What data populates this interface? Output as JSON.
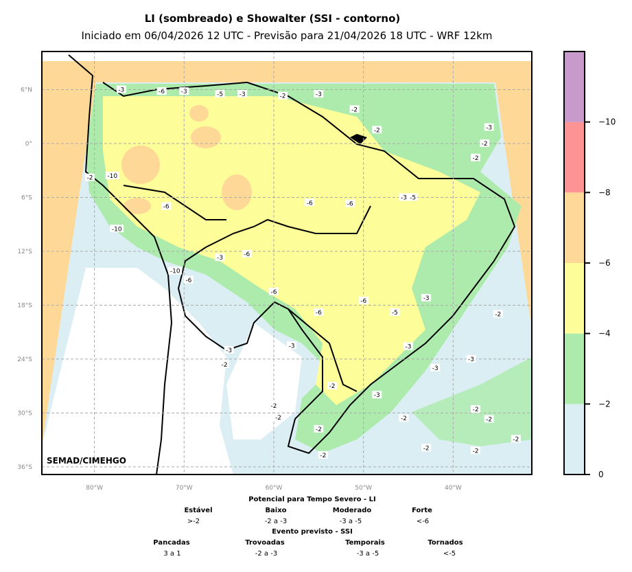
{
  "title": "LI (sombreado) e Showalter (SSI - contorno)",
  "subtitle": "Iniciado em 06/04/2026 12 UTC - Previsão para 21/04/2026 18 UTC - WRF 12km",
  "credit": "SEMAD/CIMEHGO",
  "lat_ticks": [
    {
      "lat": 6,
      "label": "6°N"
    },
    {
      "lat": 0,
      "label": "0°"
    },
    {
      "lat": -6,
      "label": "6°S"
    },
    {
      "lat": -12,
      "label": "12°S"
    },
    {
      "lat": -18,
      "label": "18°S"
    },
    {
      "lat": -24,
      "label": "24°S"
    },
    {
      "lat": -30,
      "label": "30°S"
    },
    {
      "lat": -36,
      "label": "36°S"
    }
  ],
  "lon_ticks": [
    {
      "lon": -80,
      "label": "80°W"
    },
    {
      "lon": -70,
      "label": "70°W"
    },
    {
      "lon": -60,
      "label": "60°W"
    },
    {
      "lon": -50,
      "label": "50°W"
    },
    {
      "lon": -40,
      "label": "40°W"
    }
  ],
  "colorbar": {
    "ticks": [
      "0",
      "−2",
      "−4",
      "−6",
      "−8",
      "−10"
    ],
    "colors": [
      "#dbeef4",
      "#acebab",
      "#fdfd9a",
      "#fdd896",
      "#fd9393",
      "#c899cb"
    ]
  },
  "contour_labels": [
    {
      "lon": -77,
      "lat": 6,
      "t": "-3"
    },
    {
      "lon": -72.5,
      "lat": 5.8,
      "t": "-6"
    },
    {
      "lon": -70,
      "lat": 5.8,
      "t": "-3"
    },
    {
      "lon": -66,
      "lat": 5.5,
      "t": "-5"
    },
    {
      "lon": -63.5,
      "lat": 5.5,
      "t": "-3"
    },
    {
      "lon": -59,
      "lat": 5.3,
      "t": "-2"
    },
    {
      "lon": -55,
      "lat": 5.5,
      "t": "-3"
    },
    {
      "lon": -51,
      "lat": 3.8,
      "t": "-2"
    },
    {
      "lon": -48.5,
      "lat": 1.5,
      "t": "-2"
    },
    {
      "lon": -36,
      "lat": 1.8,
      "t": "-3"
    },
    {
      "lon": -36.5,
      "lat": 0,
      "t": "-2"
    },
    {
      "lon": -37.5,
      "lat": -1.6,
      "t": "-2"
    },
    {
      "lon": -78,
      "lat": -3.6,
      "t": "-10"
    },
    {
      "lon": -80.5,
      "lat": -3.8,
      "t": "-2"
    },
    {
      "lon": -77.5,
      "lat": -9.5,
      "t": "-10"
    },
    {
      "lon": -72,
      "lat": -7,
      "t": "-6"
    },
    {
      "lon": -63,
      "lat": -12.3,
      "t": "-6"
    },
    {
      "lon": -56,
      "lat": -6.6,
      "t": "-6"
    },
    {
      "lon": -51.5,
      "lat": -6.7,
      "t": "-6"
    },
    {
      "lon": -45.5,
      "lat": -6,
      "t": "-3"
    },
    {
      "lon": -44.5,
      "lat": -6,
      "t": "-5"
    },
    {
      "lon": -71,
      "lat": -14.2,
      "t": "-10"
    },
    {
      "lon": -69.5,
      "lat": -15.2,
      "t": "-6"
    },
    {
      "lon": -66,
      "lat": -12.7,
      "t": "-3"
    },
    {
      "lon": -60,
      "lat": -16.5,
      "t": "-6"
    },
    {
      "lon": -55,
      "lat": -18.8,
      "t": "-6"
    },
    {
      "lon": -50,
      "lat": -17.5,
      "t": "-6"
    },
    {
      "lon": -46.5,
      "lat": -18.8,
      "t": "-5"
    },
    {
      "lon": -43,
      "lat": -17.2,
      "t": "-3"
    },
    {
      "lon": -45,
      "lat": -22.6,
      "t": "-3"
    },
    {
      "lon": -58,
      "lat": -22.5,
      "t": "-3"
    },
    {
      "lon": -65,
      "lat": -23,
      "t": "-3"
    },
    {
      "lon": -65.5,
      "lat": -24.6,
      "t": "-2"
    },
    {
      "lon": -53.5,
      "lat": -27,
      "t": "-2"
    },
    {
      "lon": -48.5,
      "lat": -28,
      "t": "-3"
    },
    {
      "lon": -60,
      "lat": -29.2,
      "t": "-2"
    },
    {
      "lon": -59.5,
      "lat": -30.5,
      "t": "-2"
    },
    {
      "lon": -55,
      "lat": -31.8,
      "t": "-2"
    },
    {
      "lon": -45.5,
      "lat": -30.6,
      "t": "-2"
    },
    {
      "lon": -37.5,
      "lat": -29.6,
      "t": "-2"
    },
    {
      "lon": -36,
      "lat": -30.7,
      "t": "-2"
    },
    {
      "lon": -33,
      "lat": -32.9,
      "t": "-2"
    },
    {
      "lon": -43,
      "lat": -33.9,
      "t": "-2"
    },
    {
      "lon": -37.5,
      "lat": -34.2,
      "t": "-2"
    },
    {
      "lon": -54.5,
      "lat": -34.7,
      "t": "-2"
    },
    {
      "lon": -35,
      "lat": -19,
      "t": "-2"
    },
    {
      "lon": -38,
      "lat": -24,
      "t": "-3"
    },
    {
      "lon": -42,
      "lat": -25,
      "t": "-3"
    }
  ],
  "legend": {
    "li_title": "Potencial para Tempo Severo - LI",
    "li_categories": [
      {
        "name": "Estável",
        "range": ">-2"
      },
      {
        "name": "Baixo",
        "range": "-2 a -3"
      },
      {
        "name": "Moderado",
        "range": "-3 a -5"
      },
      {
        "name": "Forte",
        "range": "<-6"
      }
    ],
    "ssi_title": "Evento previsto - SSI",
    "ssi_categories": [
      {
        "name": "Pancadas",
        "range": "3 a 1"
      },
      {
        "name": "Trovoadas",
        "range": "-2 a -3"
      },
      {
        "name": "Temporais",
        "range": "-3 a -5"
      },
      {
        "name": "Tornados",
        "range": "<-5"
      }
    ]
  }
}
